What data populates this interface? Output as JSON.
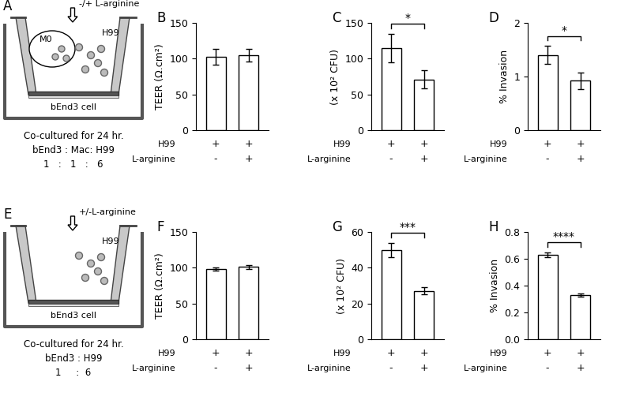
{
  "chart_data": [
    {
      "type": "bar",
      "panel": "B",
      "y_label": "TEER (Ω.cm²)",
      "values": [
        103,
        105
      ],
      "errors": [
        11,
        9
      ],
      "color": "#ffffff",
      "ylim": [
        0,
        150
      ],
      "yticks": [
        0,
        50,
        100,
        150
      ],
      "condition_rows": [
        {
          "name": "H99",
          "labels": [
            "+",
            "+"
          ]
        },
        {
          "name": "L-arginine",
          "labels": [
            "-",
            "+"
          ]
        }
      ]
    },
    {
      "type": "bar",
      "panel": "C",
      "y_label": "(x 10² CFU)",
      "values": [
        115,
        71
      ],
      "errors": [
        20,
        13
      ],
      "color": "#ffffff",
      "ylim": [
        0,
        150
      ],
      "yticks": [
        0,
        50,
        100,
        150
      ],
      "significance": "*",
      "condition_rows": [
        {
          "name": "H99",
          "labels": [
            "+",
            "+"
          ]
        },
        {
          "name": "L-arginine",
          "labels": [
            "-",
            "+"
          ]
        }
      ]
    },
    {
      "type": "bar",
      "panel": "D",
      "y_label": "% Invasion",
      "values": [
        1.4,
        0.92
      ],
      "errors": [
        0.17,
        0.16
      ],
      "color": "#ffffff",
      "ylim": [
        0,
        2
      ],
      "yticks": [
        0,
        1,
        2
      ],
      "significance": "*",
      "condition_rows": [
        {
          "name": "H99",
          "labels": [
            "+",
            "+"
          ]
        },
        {
          "name": "L-arginine",
          "labels": [
            "-",
            "+"
          ]
        }
      ]
    },
    {
      "type": "bar",
      "panel": "F",
      "y_label": "TEER (Ω.cm²)",
      "values": [
        98,
        101
      ],
      "errors": [
        2,
        3
      ],
      "color": "#ffffff",
      "ylim": [
        0,
        150
      ],
      "yticks": [
        0,
        50,
        100,
        150
      ],
      "condition_rows": [
        {
          "name": "H99",
          "labels": [
            "+",
            "+"
          ]
        },
        {
          "name": "L-arginine",
          "labels": [
            "-",
            "+"
          ]
        }
      ]
    },
    {
      "type": "bar",
      "panel": "G",
      "y_label": "(x 10² CFU)",
      "values": [
        50,
        27
      ],
      "errors": [
        4,
        2
      ],
      "color": "#ffffff",
      "ylim": [
        0,
        60
      ],
      "yticks": [
        0,
        20,
        40,
        60
      ],
      "significance": "***",
      "condition_rows": [
        {
          "name": "H99",
          "labels": [
            "+",
            "+"
          ]
        },
        {
          "name": "L-arginine",
          "labels": [
            "-",
            "+"
          ]
        }
      ]
    },
    {
      "type": "bar",
      "panel": "H",
      "y_label": "% Invasion",
      "values": [
        0.63,
        0.33
      ],
      "errors": [
        0.02,
        0.01
      ],
      "color": "#ffffff",
      "ylim": [
        0,
        0.8
      ],
      "yticks": [
        {
          "value": 0,
          "label": "0.0"
        },
        0.2,
        0.4,
        0.6,
        0.8
      ],
      "significance": "****",
      "condition_rows": [
        {
          "name": "H99",
          "labels": [
            "+",
            "+"
          ]
        },
        {
          "name": "L-arginine",
          "labels": [
            "-",
            "+"
          ]
        }
      ]
    }
  ],
  "diagrams": [
    {
      "panel": "A",
      "treatment": "-/+ L-arginine",
      "macrophage": "M0",
      "fungus": "H99",
      "cell_layer": "bEnd3 cell",
      "caption": [
        "Co-cultured for 24 hr.",
        "bEnd3 : Mac: H99",
        "1   :   1   :   6"
      ]
    },
    {
      "panel": "E",
      "treatment": "+/-L-arginine",
      "fungus": "H99",
      "cell_layer": "bEnd3 cell",
      "caption": [
        "Co-cultured for 24 hr.",
        "bEnd3 : H99",
        "1     :  6"
      ]
    }
  ]
}
